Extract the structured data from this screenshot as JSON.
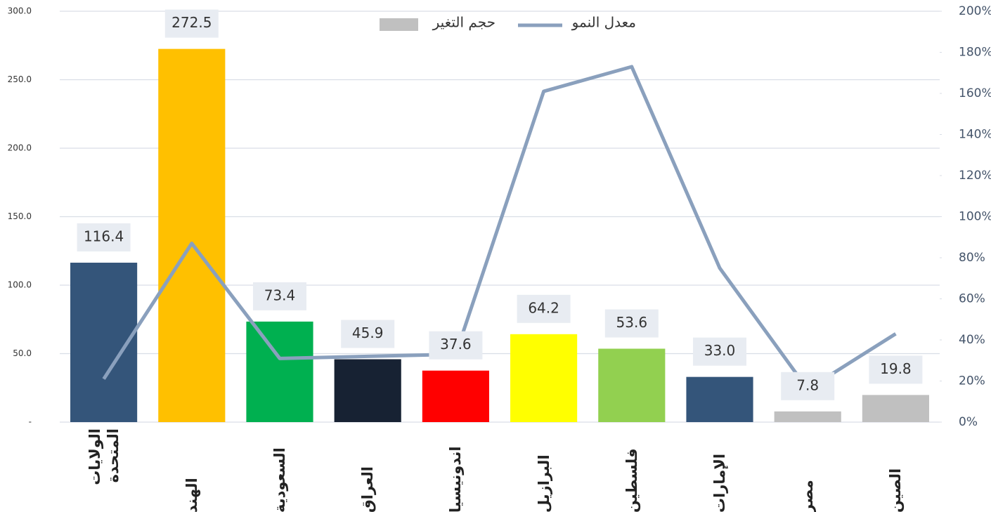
{
  "chart_data": {
    "type": "bar",
    "categories": [
      "الولايات المتحدة",
      "الهند",
      "السعودية",
      "العراق",
      "اندونيسيا",
      "البرازيل",
      "فلسطين",
      "الإمارات",
      "مصر",
      "الصين"
    ],
    "series": [
      {
        "name": "حجم التغير",
        "type": "bar",
        "color": "#c0c0c0",
        "colors": [
          "#34557a",
          "#ffc000",
          "#00b050",
          "#172233",
          "#ff0000",
          "#ffff00",
          "#92d050",
          "#34557a",
          "#c0c0c0",
          "#c0c0c0"
        ],
        "values": [
          116.4,
          272.5,
          73.4,
          45.9,
          37.6,
          64.2,
          53.6,
          33.0,
          7.8,
          19.8
        ],
        "value_labels": [
          "116.4",
          "272.5",
          "73.4",
          "45.9",
          "37.6",
          "64.2",
          "53.6",
          "33.0",
          "7.8",
          "19.8"
        ]
      },
      {
        "name": "معدل النمو",
        "type": "line",
        "color": "#8aa0bd",
        "axis": "y2",
        "values": [
          21,
          87,
          31,
          32,
          33,
          161,
          173,
          75,
          16,
          43
        ]
      }
    ],
    "ylim": [
      0,
      300
    ],
    "yticks": [
      {
        "value": 0,
        "label": "-"
      },
      {
        "value": 50,
        "label": "50.0"
      },
      {
        "value": 100,
        "label": "100.0"
      },
      {
        "value": 150,
        "label": "150.0"
      },
      {
        "value": 200,
        "label": "200.0"
      },
      {
        "value": 250,
        "label": "250.0"
      },
      {
        "value": 300,
        "label": "300.0"
      }
    ],
    "y2lim": [
      0,
      200
    ],
    "y2ticks": [
      {
        "value": 0,
        "label": "0%"
      },
      {
        "value": 20,
        "label": "20%"
      },
      {
        "value": 40,
        "label": "40%"
      },
      {
        "value": 60,
        "label": "60%"
      },
      {
        "value": 80,
        "label": "80%"
      },
      {
        "value": 100,
        "label": "100%"
      },
      {
        "value": 120,
        "label": "120%"
      },
      {
        "value": 140,
        "label": "140%"
      },
      {
        "value": 160,
        "label": "160%"
      },
      {
        "value": 180,
        "label": "180%"
      },
      {
        "value": 200,
        "label": "200%"
      }
    ],
    "grid": true,
    "legend": "top"
  }
}
